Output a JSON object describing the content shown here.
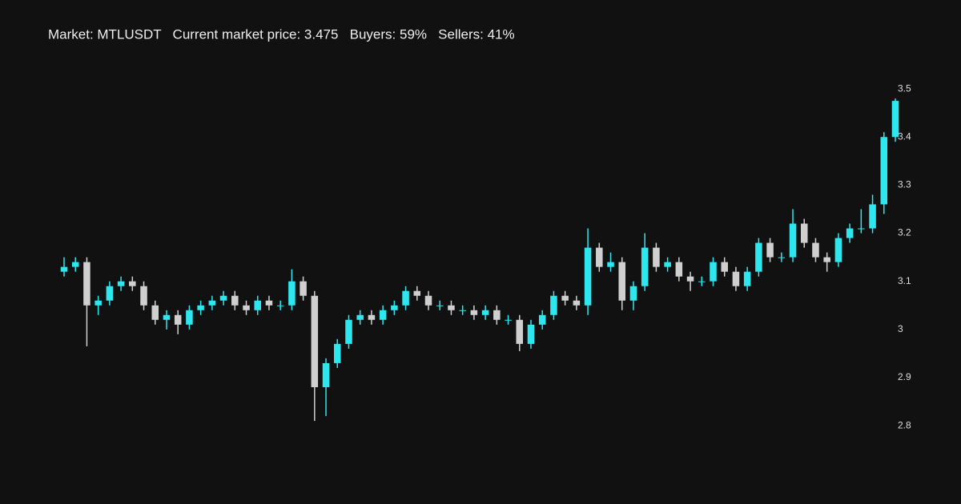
{
  "chart_data": {
    "type": "candlestick",
    "title": "Market: MTLUSDT   Current market price: 3.475   Buyers: 59%   Sellers: 41%",
    "increasing_color": "#2ee6ee",
    "decreasing_color": "#cfcfcf",
    "ylim": [
      2.737,
      3.565
    ],
    "yticks": [
      2.8,
      2.9,
      3,
      3.1,
      3.2,
      3.3,
      3.4,
      3.5
    ],
    "grid": false,
    "open": [
      3.12,
      3.13,
      3.14,
      3.05,
      3.06,
      3.09,
      3.1,
      3.09,
      3.05,
      3.02,
      3.03,
      3.01,
      3.04,
      3.05,
      3.06,
      3.07,
      3.05,
      3.04,
      3.06,
      3.05,
      3.05,
      3.1,
      3.07,
      2.88,
      2.93,
      2.97,
      3.02,
      3.03,
      3.02,
      3.04,
      3.05,
      3.08,
      3.07,
      3.05,
      3.05,
      3.04,
      3.04,
      3.03,
      3.04,
      3.02,
      3.02,
      2.97,
      3.01,
      3.03,
      3.07,
      3.06,
      3.05,
      3.17,
      3.13,
      3.14,
      3.06,
      3.09,
      3.17,
      3.13,
      3.14,
      3.11,
      3.1,
      3.1,
      3.14,
      3.12,
      3.09,
      3.12,
      3.18,
      3.15,
      3.15,
      3.22,
      3.18,
      3.15,
      3.14,
      3.19,
      3.21,
      3.21,
      3.26,
      3.4
    ],
    "high": [
      3.15,
      3.15,
      3.15,
      3.07,
      3.1,
      3.11,
      3.11,
      3.1,
      3.06,
      3.04,
      3.04,
      3.05,
      3.06,
      3.07,
      3.08,
      3.08,
      3.06,
      3.07,
      3.07,
      3.06,
      3.125,
      3.11,
      3.08,
      2.94,
      2.98,
      3.03,
      3.04,
      3.04,
      3.05,
      3.06,
      3.09,
      3.09,
      3.08,
      3.06,
      3.06,
      3.05,
      3.05,
      3.05,
      3.05,
      3.03,
      3.03,
      3.02,
      3.04,
      3.08,
      3.08,
      3.07,
      3.21,
      3.18,
      3.16,
      3.15,
      3.1,
      3.2,
      3.18,
      3.15,
      3.15,
      3.12,
      3.11,
      3.15,
      3.15,
      3.13,
      3.13,
      3.19,
      3.19,
      3.16,
      3.25,
      3.23,
      3.19,
      3.16,
      3.2,
      3.22,
      3.25,
      3.28,
      3.41,
      3.48
    ],
    "low": [
      3.11,
      3.12,
      2.965,
      3.03,
      3.05,
      3.08,
      3.08,
      3.04,
      3.01,
      3.0,
      2.99,
      3.0,
      3.03,
      3.04,
      3.05,
      3.04,
      3.03,
      3.03,
      3.04,
      3.04,
      3.04,
      3.06,
      2.81,
      2.82,
      2.92,
      2.96,
      3.01,
      3.01,
      3.01,
      3.03,
      3.04,
      3.06,
      3.04,
      3.04,
      3.03,
      3.03,
      3.02,
      3.02,
      3.01,
      3.01,
      2.955,
      2.96,
      3.0,
      3.02,
      3.05,
      3.04,
      3.03,
      3.12,
      3.12,
      3.04,
      3.04,
      3.08,
      3.12,
      3.12,
      3.1,
      3.08,
      3.09,
      3.09,
      3.11,
      3.08,
      3.08,
      3.11,
      3.14,
      3.14,
      3.14,
      3.17,
      3.14,
      3.12,
      3.13,
      3.18,
      3.2,
      3.2,
      3.24,
      3.39
    ],
    "close": [
      3.13,
      3.14,
      3.05,
      3.06,
      3.09,
      3.1,
      3.09,
      3.05,
      3.02,
      3.03,
      3.01,
      3.04,
      3.05,
      3.06,
      3.07,
      3.05,
      3.04,
      3.06,
      3.05,
      3.05,
      3.1,
      3.07,
      2.88,
      2.93,
      2.97,
      3.02,
      3.03,
      3.02,
      3.04,
      3.05,
      3.08,
      3.07,
      3.05,
      3.05,
      3.04,
      3.04,
      3.03,
      3.04,
      3.02,
      3.02,
      2.97,
      3.01,
      3.03,
      3.07,
      3.06,
      3.05,
      3.17,
      3.13,
      3.14,
      3.06,
      3.09,
      3.17,
      3.13,
      3.14,
      3.11,
      3.1,
      3.1,
      3.14,
      3.12,
      3.09,
      3.12,
      3.18,
      3.15,
      3.15,
      3.22,
      3.18,
      3.15,
      3.14,
      3.19,
      3.21,
      3.21,
      3.26,
      3.4,
      3.475
    ]
  }
}
